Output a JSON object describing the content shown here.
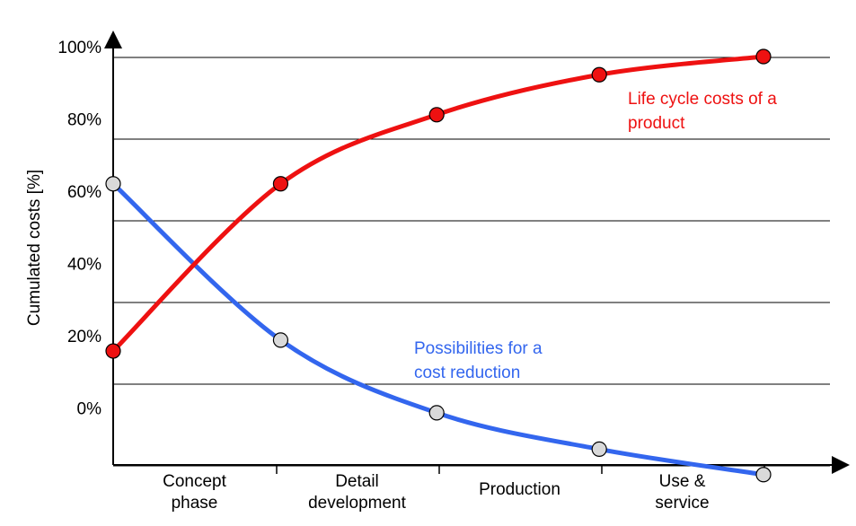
{
  "chart_data": {
    "type": "line",
    "ylabel": "Cumulated costs [%]",
    "yticks": [
      "100%",
      "80%",
      "60%",
      "40%",
      "20%",
      "0%"
    ],
    "categories": [
      {
        "lines": [
          "Concept",
          "phase"
        ]
      },
      {
        "lines": [
          "Detail",
          "development"
        ]
      },
      {
        "lines": [
          "Production"
        ]
      },
      {
        "lines": [
          "Use &",
          "service"
        ]
      }
    ],
    "ylim": [
      -15,
      100
    ],
    "grid": true,
    "series": [
      {
        "name": "Life cycle costs of a product",
        "label_lines": [
          "Life cycle costs of a",
          "product"
        ],
        "color": "#ee1111",
        "marker_fill": "#ee1111",
        "x": [
          0,
          1.03,
          1.99,
          2.99,
          4.0
        ],
        "y": [
          19,
          65,
          84,
          95,
          100
        ]
      },
      {
        "name": "Possibilities for a cost reduction",
        "label_lines": [
          "Possibilities for a",
          "cost reduction"
        ],
        "color": "#3366ee",
        "marker_fill": "#d9d9d9",
        "x": [
          0,
          1.03,
          1.99,
          2.99,
          4.0
        ],
        "y": [
          65,
          22,
          2,
          -8,
          -15
        ]
      }
    ]
  }
}
